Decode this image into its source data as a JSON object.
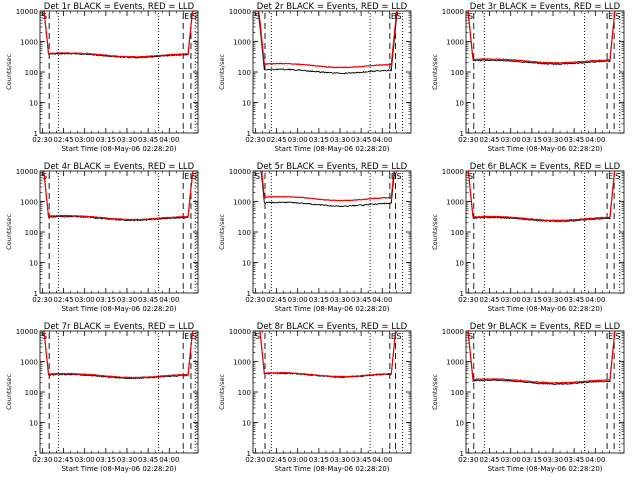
{
  "colors": {
    "events": "#000000",
    "lld": "#ee0000",
    "axis": "#000000",
    "background": "#ffffff"
  },
  "chart_data": [
    {
      "type": "line",
      "title": "Det 1r BLACK = Events, RED = LLD",
      "xlabel": "Start Time (08-May-06 02:28:20)",
      "ylabel": "Counts/sec",
      "yscale": "log",
      "ylim": [
        1,
        10000
      ],
      "xlim_minutes": [
        0,
        112
      ],
      "x_tick_labels": [
        "02:30",
        "02:45",
        "03:00",
        "03:15",
        "03:30",
        "03:45",
        "04:00"
      ],
      "y_tick_labels": [
        "1",
        "10",
        "100",
        "1000",
        "10000"
      ],
      "corner_labels": [
        "S",
        "E",
        "S"
      ],
      "events_level": 360,
      "lld_level": 380,
      "ramp_start_minute": 6,
      "ramp_end_minute": 105,
      "dashed_marker_minutes": [
        6.5,
        101.5,
        107
      ],
      "dotted_marker_minutes": [
        13,
        84,
        110
      ]
    },
    {
      "type": "line",
      "title": "Det 2r BLACK = Events, RED = LLD",
      "xlabel": "Start Time (08-May-06 02:28:20)",
      "ylabel": "Counts/sec",
      "yscale": "log",
      "ylim": [
        1,
        10000
      ],
      "xlim_minutes": [
        0,
        112
      ],
      "x_tick_labels": [
        "02:30",
        "02:45",
        "03:00",
        "03:15",
        "03:30",
        "03:45",
        "04:00"
      ],
      "y_tick_labels": [
        "1",
        "10",
        "100",
        "1000",
        "10000"
      ],
      "corner_labels": [
        "S",
        "E",
        "S"
      ],
      "events_level": 110,
      "lld_level": 170,
      "ramp_start_minute": 8,
      "ramp_end_minute": 98,
      "dashed_marker_minutes": [
        8.5,
        97,
        101
      ],
      "dotted_marker_minutes": [
        13,
        83,
        106
      ]
    },
    {
      "type": "line",
      "title": "Det 3r BLACK = Events, RED = LLD",
      "xlabel": "Start Time (08-May-06 02:28:20)",
      "ylabel": "Counts/sec",
      "yscale": "log",
      "ylim": [
        1,
        10000
      ],
      "xlim_minutes": [
        0,
        112
      ],
      "x_tick_labels": [
        "02:30",
        "02:45",
        "03:00",
        "03:15",
        "03:30",
        "03:45",
        "04:00"
      ],
      "y_tick_labels": [
        "1",
        "10",
        "100",
        "1000",
        "10000"
      ],
      "corner_labels": [
        "S",
        "E",
        "S"
      ],
      "events_level": 220,
      "lld_level": 240,
      "ramp_start_minute": 5,
      "ramp_end_minute": 102,
      "dashed_marker_minutes": [
        5.5,
        100,
        105
      ],
      "dotted_marker_minutes": [
        13,
        84,
        109
      ]
    },
    {
      "type": "line",
      "title": "Det 4r BLACK = Events, RED = LLD",
      "xlabel": "Start Time (08-May-06 02:28:20)",
      "ylabel": "Counts/sec",
      "yscale": "log",
      "ylim": [
        1,
        10000
      ],
      "xlim_minutes": [
        0,
        112
      ],
      "x_tick_labels": [
        "02:30",
        "02:45",
        "03:00",
        "03:15",
        "03:30",
        "03:45",
        "04:00"
      ],
      "y_tick_labels": [
        "1",
        "10",
        "100",
        "1000",
        "10000"
      ],
      "corner_labels": [
        "S",
        "E",
        "S"
      ],
      "events_level": 290,
      "lld_level": 310,
      "ramp_start_minute": 6,
      "ramp_end_minute": 105,
      "dashed_marker_minutes": [
        6.5,
        101.5,
        107
      ],
      "dotted_marker_minutes": [
        13,
        84,
        110
      ]
    },
    {
      "type": "line",
      "title": "Det 5r BLACK = Events, RED = LLD",
      "xlabel": "Start Time (08-May-06 02:28:20)",
      "ylabel": "Counts/sec",
      "yscale": "log",
      "ylim": [
        1,
        10000
      ],
      "xlim_minutes": [
        0,
        112
      ],
      "x_tick_labels": [
        "02:30",
        "02:45",
        "03:00",
        "03:15",
        "03:30",
        "03:45",
        "04:00"
      ],
      "y_tick_labels": [
        "1",
        "10",
        "100",
        "1000",
        "10000"
      ],
      "corner_labels": [
        "S",
        "E",
        "S"
      ],
      "events_level": 850,
      "lld_level": 1300,
      "ramp_start_minute": 8,
      "ramp_end_minute": 98,
      "dashed_marker_minutes": [
        8.5,
        97,
        101
      ],
      "dotted_marker_minutes": [
        13,
        83,
        106
      ]
    },
    {
      "type": "line",
      "title": "Det 6r BLACK = Events, RED = LLD",
      "xlabel": "Start Time (08-May-06 02:28:20)",
      "ylabel": "Counts/sec",
      "yscale": "log",
      "ylim": [
        1,
        10000
      ],
      "xlim_minutes": [
        0,
        112
      ],
      "x_tick_labels": [
        "02:30",
        "02:45",
        "03:00",
        "03:15",
        "03:30",
        "03:45",
        "04:00"
      ],
      "y_tick_labels": [
        "1",
        "10",
        "100",
        "1000",
        "10000"
      ],
      "corner_labels": [
        "S",
        "E",
        "S"
      ],
      "events_level": 270,
      "lld_level": 290,
      "ramp_start_minute": 5,
      "ramp_end_minute": 102,
      "dashed_marker_minutes": [
        5.5,
        100,
        105
      ],
      "dotted_marker_minutes": [
        13,
        84,
        109
      ]
    },
    {
      "type": "line",
      "title": "Det 7r BLACK = Events, RED = LLD",
      "xlabel": "Start Time (08-May-06 02:28:20)",
      "ylabel": "Counts/sec",
      "yscale": "log",
      "ylim": [
        1,
        10000
      ],
      "xlim_minutes": [
        0,
        112
      ],
      "x_tick_labels": [
        "02:30",
        "02:45",
        "03:00",
        "03:15",
        "03:30",
        "03:45",
        "04:00"
      ],
      "y_tick_labels": [
        "1",
        "10",
        "100",
        "1000",
        "10000"
      ],
      "corner_labels": [
        "S",
        "E",
        "S"
      ],
      "events_level": 340,
      "lld_level": 360,
      "ramp_start_minute": 6,
      "ramp_end_minute": 105,
      "dashed_marker_minutes": [
        6.5,
        101.5,
        107
      ],
      "dotted_marker_minutes": [
        13,
        84,
        110
      ]
    },
    {
      "type": "line",
      "title": "Det 8r BLACK = Events, RED = LLD",
      "xlabel": "Start Time (08-May-06 02:28:20)",
      "ylabel": "Counts/sec",
      "yscale": "log",
      "ylim": [
        1,
        10000
      ],
      "xlim_minutes": [
        0,
        112
      ],
      "x_tick_labels": [
        "02:30",
        "02:45",
        "03:00",
        "03:15",
        "03:30",
        "03:45",
        "04:00"
      ],
      "y_tick_labels": [
        "1",
        "10",
        "100",
        "1000",
        "10000"
      ],
      "corner_labels": [
        "S",
        "E",
        "S"
      ],
      "events_level": 370,
      "lld_level": 385,
      "ramp_start_minute": 8,
      "ramp_end_minute": 98,
      "dashed_marker_minutes": [
        8.5,
        97,
        101
      ],
      "dotted_marker_minutes": [
        13,
        83,
        106
      ]
    },
    {
      "type": "line",
      "title": "Det 9r BLACK = Events, RED = LLD",
      "xlabel": "Start Time (08-May-06 02:28:20)",
      "ylabel": "Counts/sec",
      "yscale": "log",
      "ylim": [
        1,
        10000
      ],
      "xlim_minutes": [
        0,
        112
      ],
      "x_tick_labels": [
        "02:30",
        "02:45",
        "03:00",
        "03:15",
        "03:30",
        "03:45",
        "04:00"
      ],
      "y_tick_labels": [
        "1",
        "10",
        "100",
        "1000",
        "10000"
      ],
      "corner_labels": [
        "S",
        "E",
        "S"
      ],
      "events_level": 220,
      "lld_level": 240,
      "ramp_start_minute": 5,
      "ramp_end_minute": 102,
      "dashed_marker_minutes": [
        5.5,
        100,
        105
      ],
      "dotted_marker_minutes": [
        13,
        84,
        109
      ]
    }
  ]
}
